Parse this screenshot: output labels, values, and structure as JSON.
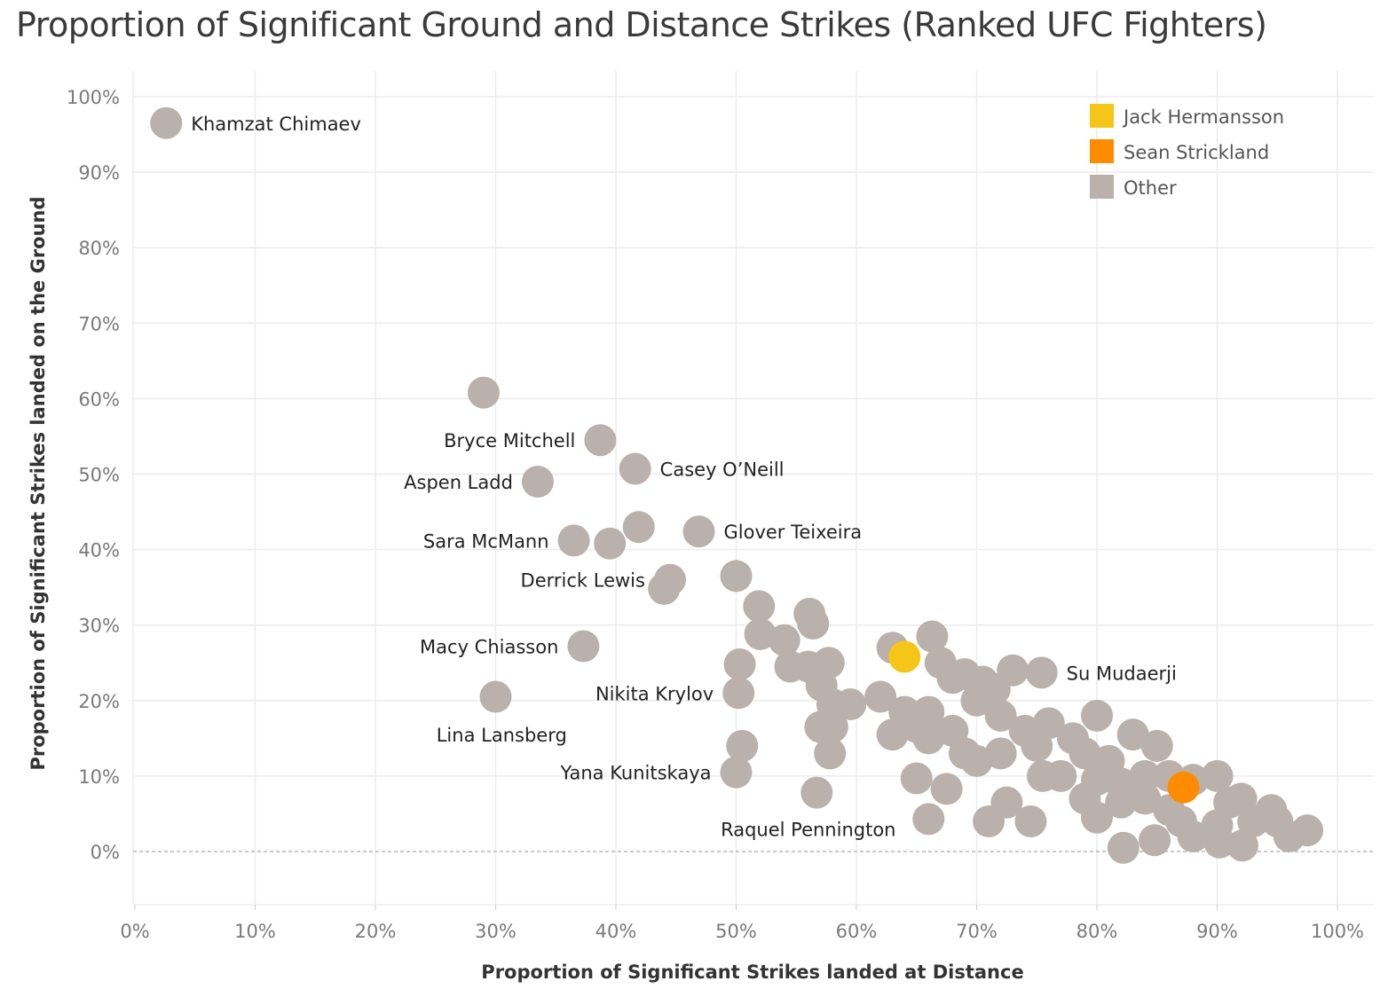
{
  "chart_data": {
    "type": "scatter",
    "title": "Proportion of Significant Ground and Distance Strikes (Ranked UFC Fighters)",
    "xlabel": "Proportion of Significant Strikes landed at Distance",
    "ylabel": "Proportion of Significant Strikes landed on the Ground",
    "xlim": [
      -0.01,
      1.03
    ],
    "ylim": [
      -0.07,
      1.05
    ],
    "x_ticks": [
      0,
      0.1,
      0.2,
      0.3,
      0.4,
      0.5,
      0.6,
      0.7,
      0.8,
      0.9,
      1.0
    ],
    "y_ticks": [
      0,
      0.1,
      0.2,
      0.3,
      0.4,
      0.5,
      0.6,
      0.7,
      0.8,
      0.9,
      1.0
    ],
    "x_tick_labels": [
      "0%",
      "10%",
      "20%",
      "30%",
      "40%",
      "50%",
      "60%",
      "70%",
      "80%",
      "90%",
      "100%"
    ],
    "y_tick_labels": [
      "0%",
      "10%",
      "20%",
      "30%",
      "40%",
      "50%",
      "60%",
      "70%",
      "80%",
      "90%",
      "100%"
    ],
    "grid": true,
    "zero_line": "dashed",
    "legend_position": "top-right",
    "legend": [
      {
        "name": "Jack Hermansson",
        "color": "#f5c518"
      },
      {
        "name": "Sean Strickland",
        "color": "#ff8c00"
      },
      {
        "name": "Other",
        "color": "#bab0ac"
      }
    ],
    "series": [
      {
        "name": "Other",
        "color": "#bab0ac",
        "points": [
          {
            "x": 0.026,
            "y": 0.965,
            "label": "Khamzat Chimaev",
            "label_side": "right"
          },
          {
            "x": 0.29,
            "y": 0.608
          },
          {
            "x": 0.387,
            "y": 0.545,
            "label": "Bryce Mitchell",
            "label_side": "left"
          },
          {
            "x": 0.416,
            "y": 0.507,
            "label": "Casey O’Neill",
            "label_side": "right"
          },
          {
            "x": 0.335,
            "y": 0.49,
            "label": "Aspen Ladd",
            "label_side": "left"
          },
          {
            "x": 0.419,
            "y": 0.43
          },
          {
            "x": 0.469,
            "y": 0.424,
            "label": "Glover Teixeira",
            "label_side": "right"
          },
          {
            "x": 0.365,
            "y": 0.412,
            "label": "Sara McMann",
            "label_side": "left"
          },
          {
            "x": 0.395,
            "y": 0.408
          },
          {
            "x": 0.445,
            "y": 0.36,
            "label": "Derrick Lewis",
            "label_side": "left"
          },
          {
            "x": 0.44,
            "y": 0.348
          },
          {
            "x": 0.5,
            "y": 0.365
          },
          {
            "x": 0.519,
            "y": 0.325
          },
          {
            "x": 0.52,
            "y": 0.288
          },
          {
            "x": 0.54,
            "y": 0.28
          },
          {
            "x": 0.561,
            "y": 0.315
          },
          {
            "x": 0.564,
            "y": 0.302
          },
          {
            "x": 0.373,
            "y": 0.272,
            "label": "Macy Chiasson",
            "label_side": "left"
          },
          {
            "x": 0.503,
            "y": 0.248
          },
          {
            "x": 0.545,
            "y": 0.245
          },
          {
            "x": 0.56,
            "y": 0.245
          },
          {
            "x": 0.577,
            "y": 0.25
          },
          {
            "x": 0.571,
            "y": 0.22
          },
          {
            "x": 0.502,
            "y": 0.21,
            "label": "Nikita Krylov",
            "label_side": "left"
          },
          {
            "x": 0.3,
            "y": 0.205
          },
          {
            "x": 0.58,
            "y": 0.195
          },
          {
            "x": 0.595,
            "y": 0.195
          },
          {
            "x": 0.62,
            "y": 0.205
          },
          {
            "x": 0.505,
            "y": 0.14
          },
          {
            "x": 0.57,
            "y": 0.165
          },
          {
            "x": 0.58,
            "y": 0.165
          },
          {
            "x": 0.578,
            "y": 0.13
          },
          {
            "x": 0.5,
            "y": 0.105,
            "label": "Yana Kunitskaya",
            "label_side": "left"
          },
          {
            "x": 0.567,
            "y": 0.078
          },
          {
            "x": 0.63,
            "y": 0.27
          },
          {
            "x": 0.663,
            "y": 0.285
          },
          {
            "x": 0.67,
            "y": 0.25
          },
          {
            "x": 0.68,
            "y": 0.23
          },
          {
            "x": 0.69,
            "y": 0.235
          },
          {
            "x": 0.705,
            "y": 0.225
          },
          {
            "x": 0.73,
            "y": 0.24
          },
          {
            "x": 0.754,
            "y": 0.237,
            "label": "Su Mudaerji",
            "label_side": "right"
          },
          {
            "x": 0.715,
            "y": 0.215
          },
          {
            "x": 0.7,
            "y": 0.2
          },
          {
            "x": 0.64,
            "y": 0.185
          },
          {
            "x": 0.66,
            "y": 0.185
          },
          {
            "x": 0.65,
            "y": 0.165
          },
          {
            "x": 0.63,
            "y": 0.155
          },
          {
            "x": 0.66,
            "y": 0.15
          },
          {
            "x": 0.68,
            "y": 0.16
          },
          {
            "x": 0.69,
            "y": 0.13
          },
          {
            "x": 0.7,
            "y": 0.12
          },
          {
            "x": 0.72,
            "y": 0.18
          },
          {
            "x": 0.74,
            "y": 0.16
          },
          {
            "x": 0.72,
            "y": 0.13
          },
          {
            "x": 0.75,
            "y": 0.14
          },
          {
            "x": 0.76,
            "y": 0.17
          },
          {
            "x": 0.78,
            "y": 0.15
          },
          {
            "x": 0.8,
            "y": 0.18
          },
          {
            "x": 0.79,
            "y": 0.13
          },
          {
            "x": 0.77,
            "y": 0.1
          },
          {
            "x": 0.755,
            "y": 0.1
          },
          {
            "x": 0.65,
            "y": 0.097
          },
          {
            "x": 0.675,
            "y": 0.083
          },
          {
            "x": 0.81,
            "y": 0.12
          },
          {
            "x": 0.83,
            "y": 0.155
          },
          {
            "x": 0.85,
            "y": 0.14
          },
          {
            "x": 0.8,
            "y": 0.095
          },
          {
            "x": 0.79,
            "y": 0.07
          },
          {
            "x": 0.82,
            "y": 0.09
          },
          {
            "x": 0.84,
            "y": 0.1
          },
          {
            "x": 0.86,
            "y": 0.1
          },
          {
            "x": 0.88,
            "y": 0.095
          },
          {
            "x": 0.9,
            "y": 0.1
          },
          {
            "x": 0.8,
            "y": 0.045
          },
          {
            "x": 0.82,
            "y": 0.065
          },
          {
            "x": 0.84,
            "y": 0.07
          },
          {
            "x": 0.86,
            "y": 0.055
          },
          {
            "x": 0.87,
            "y": 0.04
          },
          {
            "x": 0.88,
            "y": 0.02
          },
          {
            "x": 0.9,
            "y": 0.035
          },
          {
            "x": 0.92,
            "y": 0.07
          },
          {
            "x": 0.91,
            "y": 0.065
          },
          {
            "x": 0.93,
            "y": 0.04
          },
          {
            "x": 0.945,
            "y": 0.055
          },
          {
            "x": 0.95,
            "y": 0.04
          },
          {
            "x": 0.96,
            "y": 0.02
          },
          {
            "x": 0.975,
            "y": 0.028
          },
          {
            "x": 0.902,
            "y": 0.012
          },
          {
            "x": 0.921,
            "y": 0.008
          },
          {
            "x": 0.822,
            "y": 0.005
          },
          {
            "x": 0.848,
            "y": 0.015
          },
          {
            "x": 0.725,
            "y": 0.065
          },
          {
            "x": 0.745,
            "y": 0.04
          },
          {
            "x": 0.71,
            "y": 0.04
          },
          {
            "x": 0.66,
            "y": 0.043
          }
        ]
      },
      {
        "name": "Jack Hermansson",
        "color": "#f5c518",
        "points": [
          {
            "x": 0.64,
            "y": 0.258
          }
        ]
      },
      {
        "name": "Sean Strickland",
        "color": "#ff8c00",
        "points": [
          {
            "x": 0.872,
            "y": 0.085
          }
        ]
      }
    ],
    "free_labels": [
      {
        "text": "Lina Lansberg",
        "x": 0.305,
        "y": 0.155
      },
      {
        "text": "Raquel Pennington",
        "x": 0.56,
        "y": 0.03
      }
    ]
  }
}
